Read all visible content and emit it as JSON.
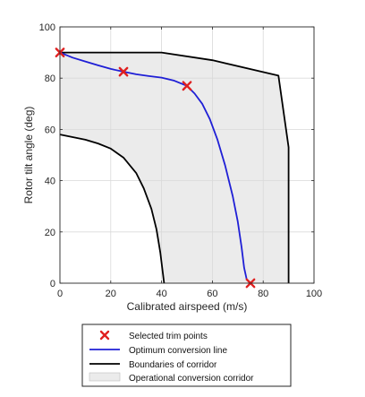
{
  "colors": {
    "corridor_fill": "#ebebeb",
    "boundary": "#000000",
    "optimum_line": "#1f1fd6",
    "trim_marker": "#e02020",
    "grid": "#d9d9d9",
    "axes": "#262626"
  },
  "chart_data": {
    "type": "line",
    "title": "",
    "xlabel": "Calibrated airspeed (m/s)",
    "ylabel": "Rotor tilt angle (deg)",
    "xlim": [
      0,
      100
    ],
    "ylim": [
      0,
      100
    ],
    "xticks": [
      "0",
      "20",
      "40",
      "60",
      "80",
      "100"
    ],
    "yticks": [
      "0",
      "20",
      "40",
      "60",
      "80",
      "100"
    ],
    "grid": true,
    "legend_position": "bottom-outside",
    "series": [
      {
        "name": "Selected trim points",
        "kind": "scatter",
        "marker": "x",
        "points": [
          [
            0,
            90
          ],
          [
            25,
            82.5
          ],
          [
            50,
            77
          ],
          [
            75,
            0
          ]
        ]
      },
      {
        "name": "Optimum conversion line",
        "kind": "line",
        "points": [
          [
            0,
            90
          ],
          [
            5,
            88
          ],
          [
            10,
            86.5
          ],
          [
            15,
            85
          ],
          [
            20,
            83.6
          ],
          [
            25,
            82.5
          ],
          [
            30,
            81.5
          ],
          [
            35,
            80.8
          ],
          [
            40,
            80.2
          ],
          [
            45,
            79
          ],
          [
            50,
            77
          ],
          [
            53,
            74
          ],
          [
            56,
            70
          ],
          [
            59,
            64
          ],
          [
            62,
            56
          ],
          [
            65,
            46
          ],
          [
            68,
            34
          ],
          [
            70,
            24
          ],
          [
            71.5,
            14
          ],
          [
            72.5,
            6
          ],
          [
            73.5,
            1.5
          ],
          [
            75,
            0
          ]
        ]
      },
      {
        "name": "Boundaries of corridor",
        "kind": "line",
        "segments": [
          [
            [
              0,
              90
            ],
            [
              40,
              90
            ],
            [
              60,
              87
            ],
            [
              86,
              81
            ],
            [
              90,
              53
            ],
            [
              90,
              0
            ]
          ],
          [
            [
              0,
              58
            ],
            [
              5,
              57
            ],
            [
              10,
              56
            ],
            [
              15,
              54.5
            ],
            [
              20,
              52.5
            ],
            [
              25,
              49
            ],
            [
              30,
              43
            ],
            [
              33,
              37
            ],
            [
              36,
              29
            ],
            [
              38,
              21
            ],
            [
              39.5,
              12
            ],
            [
              40.5,
              4
            ],
            [
              41,
              0
            ]
          ]
        ]
      },
      {
        "name": "Operational conversion corridor",
        "kind": "area",
        "polygon": [
          [
            0,
            90
          ],
          [
            40,
            90
          ],
          [
            60,
            87
          ],
          [
            86,
            81
          ],
          [
            90,
            53
          ],
          [
            90,
            0
          ],
          [
            41,
            0
          ],
          [
            40.5,
            4
          ],
          [
            39.5,
            12
          ],
          [
            38,
            21
          ],
          [
            36,
            29
          ],
          [
            33,
            37
          ],
          [
            30,
            43
          ],
          [
            25,
            49
          ],
          [
            20,
            52.5
          ],
          [
            15,
            54.5
          ],
          [
            10,
            56
          ],
          [
            5,
            57
          ],
          [
            0,
            58
          ]
        ]
      }
    ]
  }
}
